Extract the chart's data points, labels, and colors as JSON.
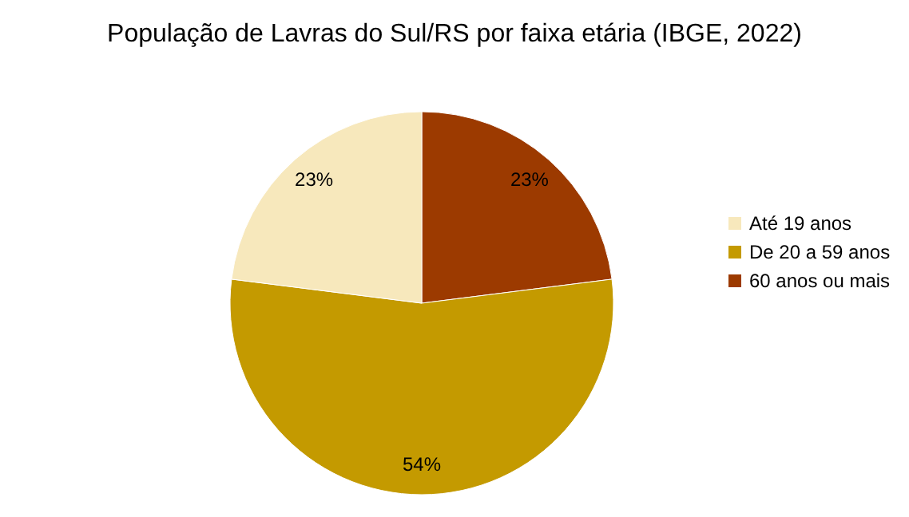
{
  "chart_data": {
    "type": "pie",
    "title": "População de Lavras do Sul/RS por faixa etária (IBGE, 2022)",
    "categories": [
      "Até 19 anos",
      "De 20 a 59 anos",
      "60 anos ou mais"
    ],
    "values": [
      23,
      54,
      23
    ],
    "value_labels": [
      "23%",
      "54%",
      "23%"
    ],
    "colors": [
      "#f7e8bc",
      "#c49a00",
      "#9c3a00"
    ],
    "legend": "right"
  }
}
